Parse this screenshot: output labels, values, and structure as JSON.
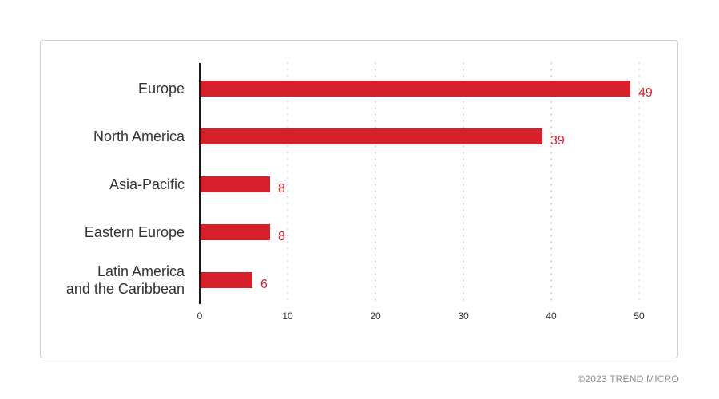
{
  "chart_data": {
    "type": "bar",
    "orientation": "horizontal",
    "categories": [
      "Europe",
      "North America",
      "Asia-Pacific",
      "Eastern Europe",
      "Latin America and the Caribbean"
    ],
    "category_lines": [
      [
        "Europe"
      ],
      [
        "North America"
      ],
      [
        "Asia-Pacific"
      ],
      [
        "Eastern Europe"
      ],
      [
        "Latin America",
        "and the Caribbean"
      ]
    ],
    "values": [
      49,
      39,
      8,
      8,
      6
    ],
    "value_labels": [
      "49",
      "39",
      "8",
      "8",
      "6"
    ],
    "x_ticks": [
      0,
      10,
      20,
      30,
      40,
      50
    ],
    "xlim": [
      0,
      50
    ],
    "grid": true,
    "title": "",
    "xlabel": "",
    "ylabel": "",
    "bar_color": "#d71f2b"
  },
  "footer": {
    "credit": "©2023 TREND MICRO"
  }
}
